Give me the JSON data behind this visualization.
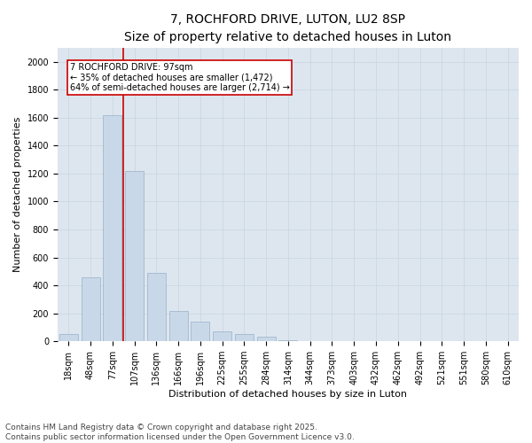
{
  "title": "7, ROCHFORD DRIVE, LUTON, LU2 8SP",
  "subtitle": "Size of property relative to detached houses in Luton",
  "xlabel": "Distribution of detached houses by size in Luton",
  "ylabel": "Number of detached properties",
  "categories": [
    "18sqm",
    "48sqm",
    "77sqm",
    "107sqm",
    "136sqm",
    "166sqm",
    "196sqm",
    "225sqm",
    "255sqm",
    "284sqm",
    "314sqm",
    "344sqm",
    "373sqm",
    "403sqm",
    "432sqm",
    "462sqm",
    "492sqm",
    "521sqm",
    "551sqm",
    "580sqm",
    "610sqm"
  ],
  "values": [
    55,
    455,
    1620,
    1220,
    490,
    215,
    140,
    70,
    55,
    30,
    10,
    0,
    0,
    0,
    0,
    0,
    0,
    0,
    0,
    0,
    0
  ],
  "bar_color": "#c8d8e8",
  "bar_edge_color": "#9ab0c8",
  "vline_color": "#cc0000",
  "vline_x_index": 2.5,
  "annotation_text": "7 ROCHFORD DRIVE: 97sqm\n← 35% of detached houses are smaller (1,472)\n64% of semi-detached houses are larger (2,714) →",
  "annotation_box_facecolor": "#ffffff",
  "annotation_box_edgecolor": "#cc0000",
  "ylim": [
    0,
    2100
  ],
  "yticks": [
    0,
    200,
    400,
    600,
    800,
    1000,
    1200,
    1400,
    1600,
    1800,
    2000
  ],
  "grid_color": "#c8d4de",
  "plot_bg_color": "#dde6ef",
  "fig_bg_color": "#ffffff",
  "footer1": "Contains HM Land Registry data © Crown copyright and database right 2025.",
  "footer2": "Contains public sector information licensed under the Open Government Licence v3.0.",
  "title_fontsize": 10,
  "axis_label_fontsize": 8,
  "tick_fontsize": 7,
  "footer_fontsize": 6.5,
  "annotation_fontsize": 7
}
